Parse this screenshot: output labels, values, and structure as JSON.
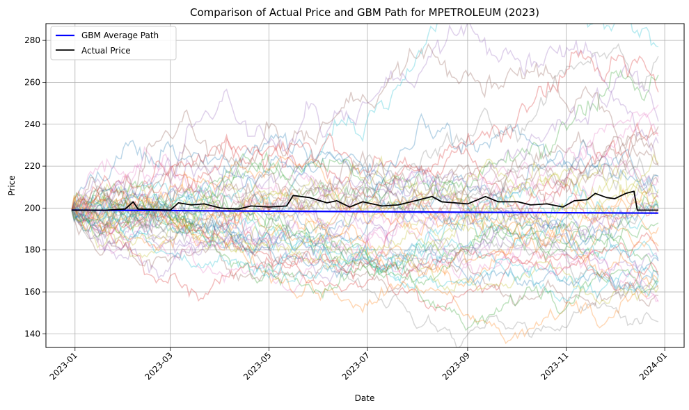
{
  "chart_data": {
    "type": "line",
    "title": "Comparison of Actual Price and GBM Path for MPETROLEUM (2023)",
    "xlabel": "Date",
    "ylabel": "Price",
    "x_ticks": [
      "2023-01",
      "2023-03",
      "2023-05",
      "2023-07",
      "2023-09",
      "2023-11",
      "2024-01"
    ],
    "y_ticks": [
      140,
      160,
      180,
      200,
      220,
      240,
      260,
      280
    ],
    "xlim": [
      "2022-12-14",
      "2024-01-13"
    ],
    "ylim": [
      133.5,
      288
    ],
    "grid": true,
    "legend_position": "top-left",
    "simulated_paths": {
      "count": 50,
      "start_value": 199,
      "opacity": 0.3,
      "colors": [
        "#1f77b4",
        "#ff7f0e",
        "#2ca02c",
        "#d62728",
        "#9467bd",
        "#8c564b",
        "#e377c2",
        "#7f7f7f",
        "#bcbd22",
        "#17becf"
      ],
      "final_value_range": [
        142,
        254
      ],
      "maximum": 281,
      "minimum": 141
    },
    "series": [
      {
        "name": "GBM Average Path",
        "color": "#0000ff",
        "points": [
          [
            "2022-12-30",
            199
          ],
          [
            "2023-03-01",
            198.8
          ],
          [
            "2023-05-01",
            198.5
          ],
          [
            "2023-07-01",
            198.3
          ],
          [
            "2023-09-01",
            198.0
          ],
          [
            "2023-11-01",
            197.8
          ],
          [
            "2023-12-28",
            197.6
          ]
        ]
      },
      {
        "name": "Actual Price",
        "color": "#000000",
        "points": [
          [
            "2022-12-30",
            199
          ],
          [
            "2023-01-20",
            199
          ],
          [
            "2023-02-01",
            199.5
          ],
          [
            "2023-02-06",
            203
          ],
          [
            "2023-02-09",
            199.5
          ],
          [
            "2023-03-01",
            199
          ],
          [
            "2023-03-06",
            202.5
          ],
          [
            "2023-03-14",
            201.5
          ],
          [
            "2023-03-22",
            202
          ],
          [
            "2023-04-01",
            200
          ],
          [
            "2023-04-12",
            199.5
          ],
          [
            "2023-04-20",
            201
          ],
          [
            "2023-05-01",
            200.5
          ],
          [
            "2023-05-12",
            201
          ],
          [
            "2023-05-16",
            206
          ],
          [
            "2023-05-26",
            205
          ],
          [
            "2023-06-06",
            202.5
          ],
          [
            "2023-06-12",
            203.5
          ],
          [
            "2023-06-20",
            200.5
          ],
          [
            "2023-06-28",
            203
          ],
          [
            "2023-07-10",
            201
          ],
          [
            "2023-07-20",
            201.5
          ],
          [
            "2023-07-28",
            203
          ],
          [
            "2023-08-10",
            205.5
          ],
          [
            "2023-08-16",
            203
          ],
          [
            "2023-08-24",
            202.5
          ],
          [
            "2023-09-01",
            202
          ],
          [
            "2023-09-12",
            205.5
          ],
          [
            "2023-09-20",
            203
          ],
          [
            "2023-10-02",
            203
          ],
          [
            "2023-10-10",
            201.5
          ],
          [
            "2023-10-20",
            202
          ],
          [
            "2023-10-30",
            200.5
          ],
          [
            "2023-11-06",
            203.5
          ],
          [
            "2023-11-14",
            204
          ],
          [
            "2023-11-19",
            207
          ],
          [
            "2023-11-26",
            205
          ],
          [
            "2023-12-01",
            204.5
          ],
          [
            "2023-12-08",
            207
          ],
          [
            "2023-12-13",
            208
          ],
          [
            "2023-12-15",
            199
          ],
          [
            "2023-12-28",
            199
          ]
        ]
      }
    ]
  }
}
